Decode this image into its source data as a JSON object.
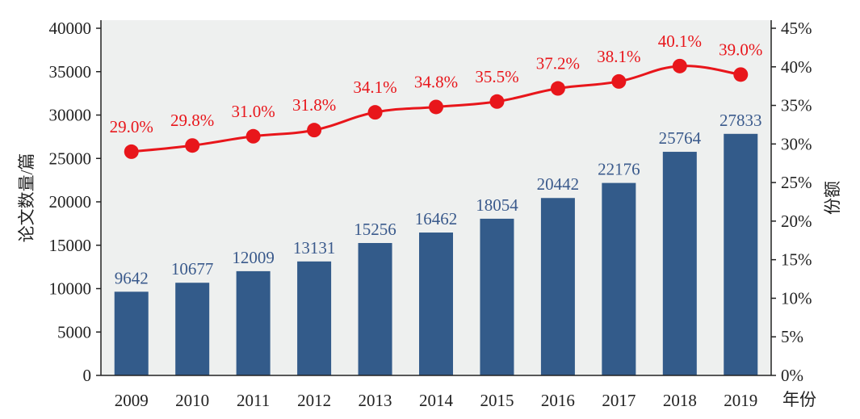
{
  "chart_data": {
    "type": "bar+line",
    "categories": [
      "2009",
      "2010",
      "2011",
      "2012",
      "2013",
      "2014",
      "2015",
      "2016",
      "2017",
      "2018",
      "2019"
    ],
    "series": [
      {
        "name": "论文数量",
        "type": "bar",
        "axis": "left",
        "values": [
          9642,
          10677,
          12009,
          13131,
          15256,
          16462,
          18054,
          20442,
          22176,
          25764,
          27833
        ],
        "labels": [
          "9642",
          "10677",
          "12009",
          "13131",
          "15256",
          "16462",
          "18054",
          "20442",
          "22176",
          "25764",
          "27833"
        ]
      },
      {
        "name": "份额",
        "type": "line",
        "axis": "right",
        "values": [
          29.0,
          29.8,
          31.0,
          31.8,
          34.1,
          34.8,
          35.5,
          37.2,
          38.1,
          40.1,
          39.0
        ],
        "labels": [
          "29.0%",
          "29.8%",
          "31.0%",
          "31.8%",
          "34.1%",
          "34.8%",
          "35.5%",
          "37.2%",
          "38.1%",
          "40.1%",
          "39.0%"
        ]
      }
    ],
    "xlabel": "年份",
    "ylabel": "论文数量/篇",
    "y2label": "份额",
    "ylim": [
      0,
      40000
    ],
    "y2lim": [
      0,
      45
    ],
    "yticks": [
      "0",
      "5000",
      "10000",
      "15000",
      "20000",
      "25000",
      "30000",
      "35000",
      "40000"
    ],
    "y2ticks": [
      "0%",
      "5%",
      "10%",
      "15%",
      "20%",
      "25%",
      "30%",
      "35%",
      "40%",
      "45%"
    ],
    "grid": false,
    "colors": {
      "bar": "#335b8a",
      "bar_label": "#3a5a8c",
      "line": "#e8161b",
      "plot_bg": "#eef0ef"
    }
  }
}
